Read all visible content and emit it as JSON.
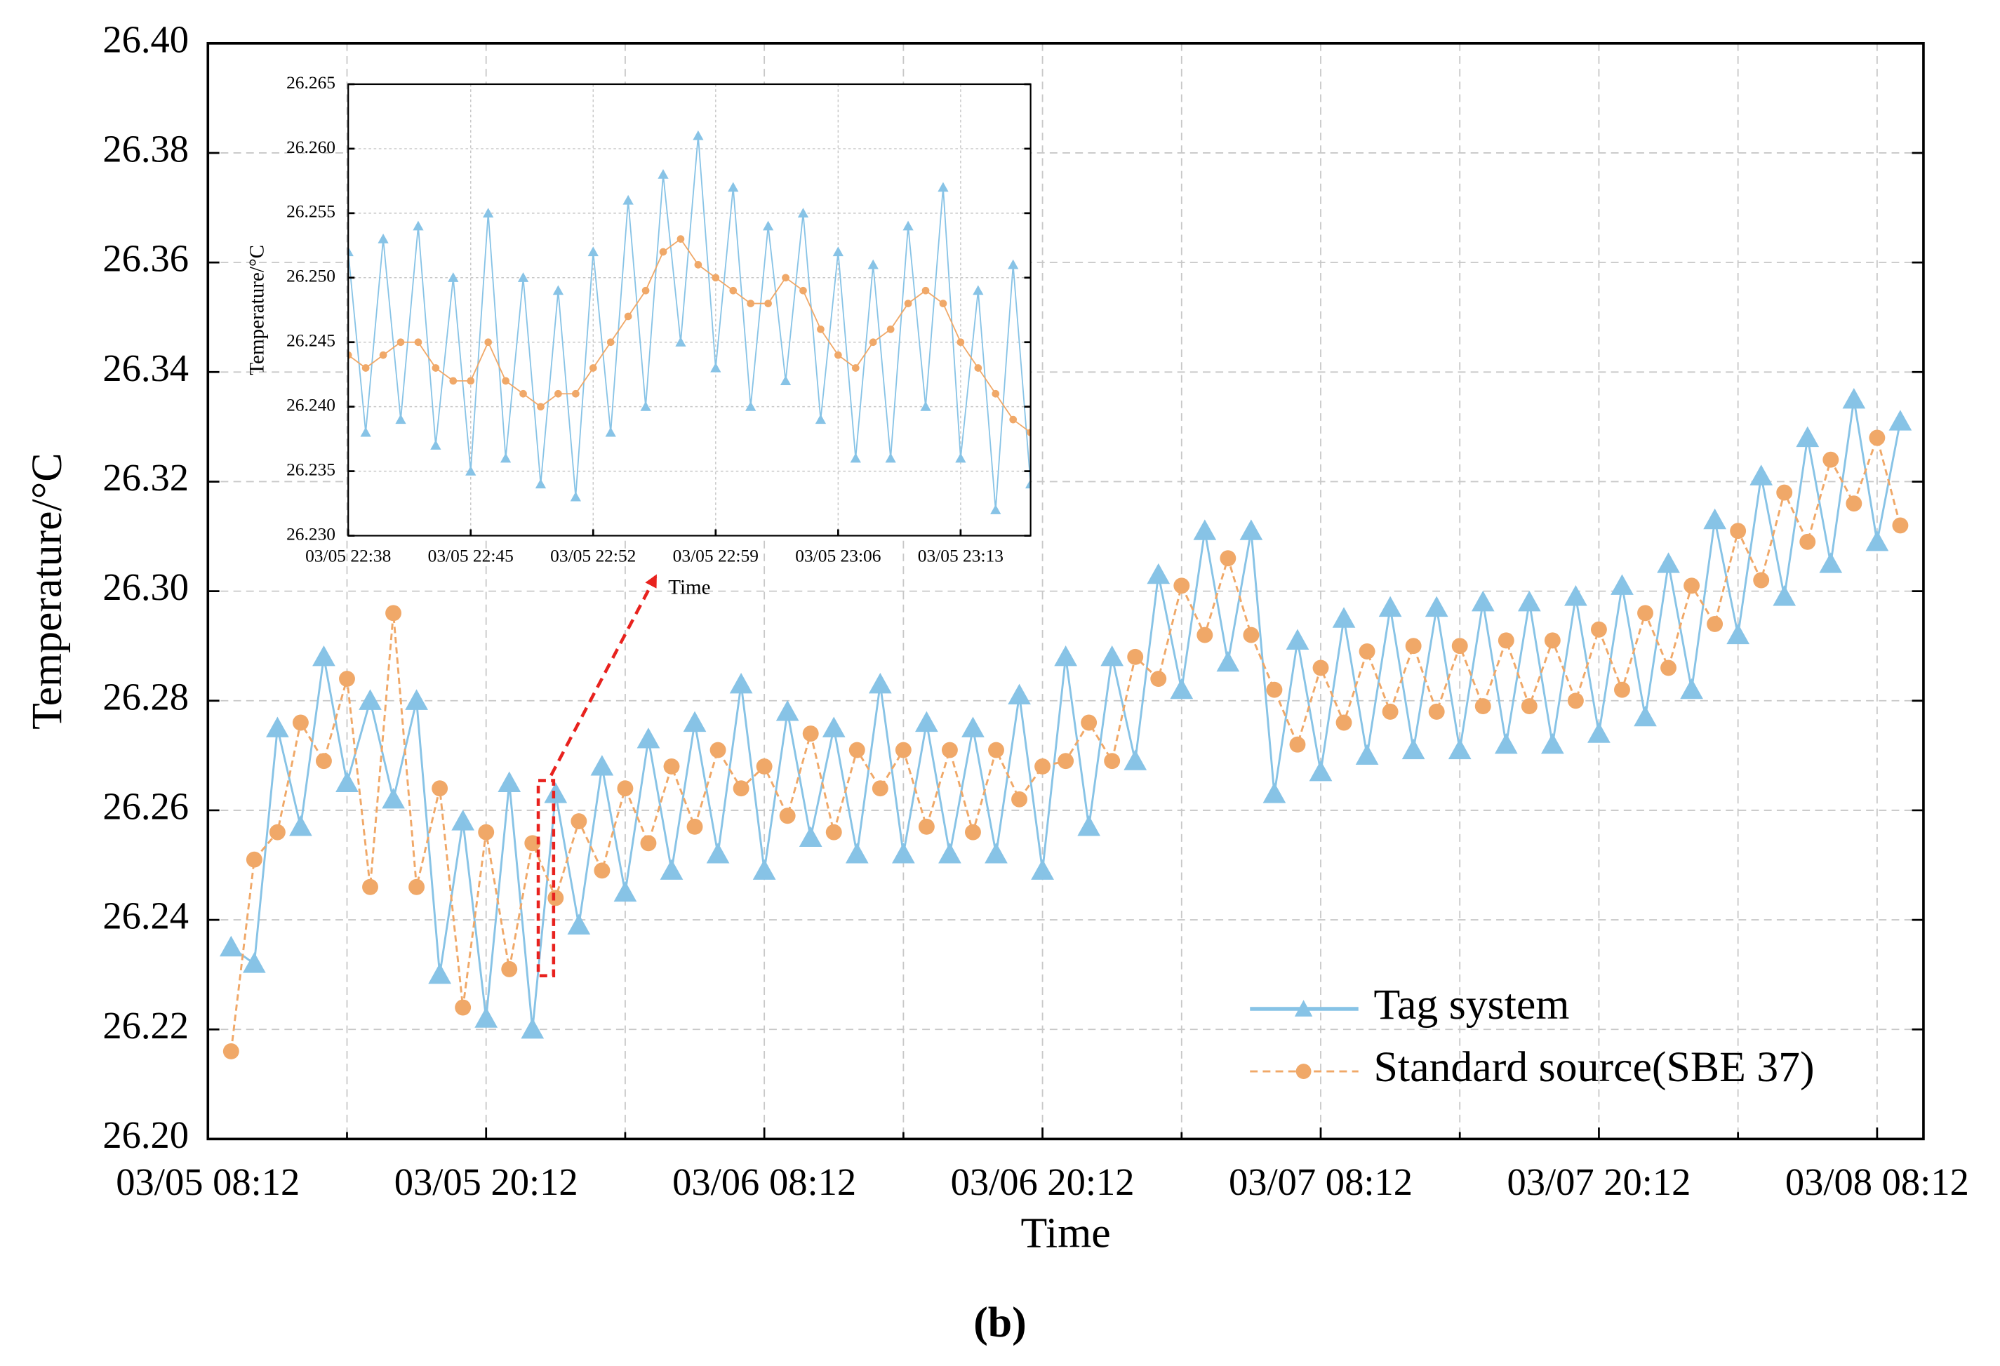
{
  "caption": "(b)",
  "chart_data": [
    {
      "type": "line",
      "xlabel": "Time",
      "ylabel": "Temperature/°C",
      "grid": true,
      "legend": "lower right",
      "xlim": [
        0,
        74
      ],
      "ylim": [
        26.2,
        26.4
      ],
      "xticks": [
        {
          "value": 0,
          "label": "03/05 08:12"
        },
        {
          "value": 12,
          "label": "03/05 20:12"
        },
        {
          "value": 24,
          "label": "03/06 08:12"
        },
        {
          "value": 36,
          "label": "03/06 20:12"
        },
        {
          "value": 48,
          "label": "03/07 08:12"
        },
        {
          "value": 60,
          "label": "03/07 20:12"
        },
        {
          "value": 72,
          "label": "03/08 08:12"
        }
      ],
      "xminorticks": [
        6,
        18,
        30,
        42,
        54,
        66
      ],
      "yticks": [
        {
          "value": 26.2,
          "label": "26.20"
        },
        {
          "value": 26.22,
          "label": "26.22"
        },
        {
          "value": 26.24,
          "label": "26.24"
        },
        {
          "value": 26.26,
          "label": "26.26"
        },
        {
          "value": 26.28,
          "label": "26.28"
        },
        {
          "value": 26.3,
          "label": "26.30"
        },
        {
          "value": 26.32,
          "label": "26.32"
        },
        {
          "value": 26.34,
          "label": "26.34"
        },
        {
          "value": 26.36,
          "label": "26.36"
        },
        {
          "value": 26.38,
          "label": "26.38"
        },
        {
          "value": 26.4,
          "label": "26.40"
        }
      ],
      "x": [
        1,
        2,
        3,
        4,
        5,
        6,
        7,
        8,
        9,
        10,
        11,
        12,
        13,
        14,
        15,
        16,
        17,
        18,
        19,
        20,
        21,
        22,
        23,
        24,
        25,
        26,
        27,
        28,
        29,
        30,
        31,
        32,
        33,
        34,
        35,
        36,
        37,
        38,
        39,
        40,
        41,
        42,
        43,
        44,
        45,
        46,
        47,
        48,
        49,
        50,
        51,
        52,
        53,
        54,
        55,
        56,
        57,
        58,
        59,
        60,
        61,
        62,
        63,
        64,
        65,
        66,
        67,
        68,
        69,
        70,
        71,
        72,
        73
      ],
      "series": [
        {
          "name": "Tag system",
          "color": "#87c3e6",
          "marker": "triangle",
          "values": [
            26.235,
            26.232,
            26.275,
            26.257,
            26.288,
            26.265,
            26.28,
            26.262,
            26.28,
            26.23,
            26.258,
            26.222,
            26.265,
            26.22,
            26.263,
            26.239,
            26.268,
            26.245,
            26.273,
            26.249,
            26.276,
            26.252,
            26.283,
            26.249,
            26.278,
            26.255,
            26.275,
            26.252,
            26.283,
            26.252,
            26.276,
            26.252,
            26.275,
            26.252,
            26.281,
            26.249,
            26.288,
            26.257,
            26.288,
            26.269,
            26.303,
            26.282,
            26.311,
            26.287,
            26.311,
            26.263,
            26.291,
            26.267,
            26.295,
            26.27,
            26.297,
            26.271,
            26.297,
            26.271,
            26.298,
            26.272,
            26.298,
            26.272,
            26.299,
            26.274,
            26.301,
            26.277,
            26.305,
            26.282,
            26.313,
            26.292,
            26.321,
            26.299,
            26.328,
            26.305,
            26.335,
            26.309,
            26.331
          ]
        },
        {
          "name": "Standard source(SBE 37)",
          "color": "#f0a868",
          "marker": "circle",
          "dashed": true,
          "values": [
            26.216,
            26.251,
            26.256,
            26.276,
            26.269,
            26.284,
            26.246,
            26.296,
            26.246,
            26.264,
            26.224,
            26.256,
            26.231,
            26.254,
            26.244,
            26.258,
            26.249,
            26.264,
            26.254,
            26.268,
            26.257,
            26.271,
            26.264,
            26.268,
            26.259,
            26.274,
            26.256,
            26.271,
            26.264,
            26.271,
            26.257,
            26.271,
            26.256,
            26.271,
            26.262,
            26.268,
            26.269,
            26.276,
            26.269,
            26.288,
            26.284,
            26.301,
            26.292,
            26.306,
            26.292,
            26.282,
            26.272,
            26.286,
            26.276,
            26.289,
            26.278,
            26.29,
            26.278,
            26.29,
            26.279,
            26.291,
            26.279,
            26.291,
            26.28,
            26.293,
            26.282,
            26.296,
            26.286,
            26.301,
            26.294,
            26.311,
            26.302,
            26.318,
            26.309,
            26.324,
            26.316,
            26.328,
            26.312
          ]
        }
      ]
    },
    {
      "type": "line",
      "xlabel": "Time",
      "ylabel": "Temperature/°C",
      "grid": true,
      "xlim": [
        0,
        39
      ],
      "ylim": [
        26.23,
        26.265
      ],
      "xticks": [
        {
          "value": 0,
          "label": "03/05 22:38"
        },
        {
          "value": 7,
          "label": "03/05 22:45"
        },
        {
          "value": 14,
          "label": "03/05 22:52"
        },
        {
          "value": 21,
          "label": "03/05 22:59"
        },
        {
          "value": 28,
          "label": "03/05 23:06"
        },
        {
          "value": 35,
          "label": "03/05 23:13"
        }
      ],
      "yticks": [
        {
          "value": 26.23,
          "label": "26.230"
        },
        {
          "value": 26.235,
          "label": "26.235"
        },
        {
          "value": 26.24,
          "label": "26.240"
        },
        {
          "value": 26.245,
          "label": "26.245"
        },
        {
          "value": 26.25,
          "label": "26.250"
        },
        {
          "value": 26.255,
          "label": "26.255"
        },
        {
          "value": 26.26,
          "label": "26.260"
        },
        {
          "value": 26.265,
          "label": "26.265"
        }
      ],
      "x": [
        0,
        1,
        2,
        3,
        4,
        5,
        6,
        7,
        8,
        9,
        10,
        11,
        12,
        13,
        14,
        15,
        16,
        17,
        18,
        19,
        20,
        21,
        22,
        23,
        24,
        25,
        26,
        27,
        28,
        29,
        30,
        31,
        32,
        33,
        34,
        35,
        36,
        37,
        38,
        39
      ],
      "series": [
        {
          "color": "#87c3e6",
          "marker": "triangle",
          "values": [
            26.252,
            26.238,
            26.253,
            26.239,
            26.254,
            26.237,
            26.25,
            26.235,
            26.255,
            26.236,
            26.25,
            26.234,
            26.249,
            26.233,
            26.252,
            26.238,
            26.256,
            26.24,
            26.258,
            26.245,
            26.261,
            26.243,
            26.257,
            26.24,
            26.254,
            26.242,
            26.255,
            26.239,
            26.252,
            26.236,
            26.251,
            26.236,
            26.254,
            26.24,
            26.257,
            26.236,
            26.249,
            26.232,
            26.251,
            26.234
          ]
        },
        {
          "color": "#f0a868",
          "marker": "circle",
          "values": [
            26.244,
            26.243,
            26.244,
            26.245,
            26.245,
            26.243,
            26.242,
            26.242,
            26.245,
            26.242,
            26.241,
            26.24,
            26.241,
            26.241,
            26.243,
            26.245,
            26.247,
            26.249,
            26.252,
            26.253,
            26.251,
            26.25,
            26.249,
            26.248,
            26.248,
            26.25,
            26.249,
            26.246,
            26.244,
            26.243,
            26.245,
            26.246,
            26.248,
            26.249,
            26.248,
            26.245,
            26.243,
            26.241,
            26.239,
            26.238
          ]
        }
      ]
    }
  ]
}
